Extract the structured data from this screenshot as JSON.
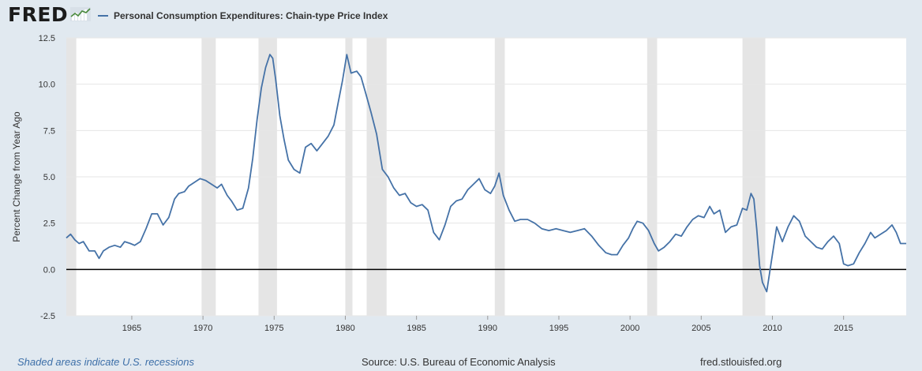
{
  "header": {
    "logo_text": "FRED",
    "legend_label": "Personal Consumption Expenditures: Chain-type Price Index",
    "series_color": "#4572a7"
  },
  "footer": {
    "recession_note": "Shaded areas indicate U.S. recessions",
    "source": "Source: U.S. Bureau of Economic Analysis",
    "site": "fred.stlouisfed.org"
  },
  "chart_data": {
    "type": "line",
    "title": "",
    "xlabel": "",
    "ylabel": "Percent Change from Year Ago",
    "xlim": [
      1960.4,
      2019.4
    ],
    "ylim": [
      -2.5,
      12.5
    ],
    "yticks": [
      "12.5",
      "10.0",
      "7.5",
      "5.0",
      "2.5",
      "0.0",
      "-2.5"
    ],
    "xticks": [
      "1965",
      "1970",
      "1975",
      "1980",
      "1985",
      "1990",
      "1995",
      "2000",
      "2005",
      "2010",
      "2015"
    ],
    "grid": true,
    "zero_line": true,
    "recessions": [
      [
        1960.3,
        1961.1
      ],
      [
        1969.9,
        1970.9
      ],
      [
        1973.9,
        1975.2
      ],
      [
        1980.0,
        1980.5
      ],
      [
        1981.5,
        1982.9
      ],
      [
        1990.5,
        1991.2
      ],
      [
        2001.2,
        2001.9
      ],
      [
        2007.9,
        2009.5
      ]
    ],
    "series": [
      {
        "name": "Personal Consumption Expenditures: Chain-type Price Index",
        "color": "#4572a7",
        "x": [
          1960.4,
          1960.7,
          1961.0,
          1961.3,
          1961.6,
          1962.0,
          1962.4,
          1962.7,
          1963.0,
          1963.4,
          1963.8,
          1964.2,
          1964.5,
          1964.9,
          1965.2,
          1965.6,
          1966.0,
          1966.4,
          1966.8,
          1967.2,
          1967.6,
          1968.0,
          1968.3,
          1968.7,
          1969.0,
          1969.4,
          1969.8,
          1970.2,
          1970.6,
          1971.0,
          1971.3,
          1971.7,
          1972.0,
          1972.4,
          1972.8,
          1973.2,
          1973.5,
          1973.8,
          1974.1,
          1974.4,
          1974.7,
          1974.9,
          1975.1,
          1975.4,
          1975.7,
          1976.0,
          1976.4,
          1976.8,
          1977.2,
          1977.6,
          1978.0,
          1978.4,
          1978.8,
          1979.2,
          1979.5,
          1979.8,
          1980.1,
          1980.4,
          1980.8,
          1981.1,
          1981.4,
          1981.8,
          1982.2,
          1982.6,
          1983.0,
          1983.4,
          1983.8,
          1984.2,
          1984.6,
          1985.0,
          1985.4,
          1985.8,
          1986.2,
          1986.6,
          1987.0,
          1987.4,
          1987.8,
          1988.2,
          1988.6,
          1989.0,
          1989.4,
          1989.8,
          1990.2,
          1990.5,
          1990.8,
          1991.1,
          1991.5,
          1991.9,
          1992.3,
          1992.8,
          1993.3,
          1993.8,
          1994.3,
          1994.8,
          1995.3,
          1995.8,
          1996.3,
          1996.8,
          1997.3,
          1997.8,
          1998.3,
          1998.7,
          1999.1,
          1999.5,
          1999.9,
          2000.2,
          2000.5,
          2000.9,
          2001.3,
          2001.7,
          2002.0,
          2002.4,
          2002.8,
          2003.2,
          2003.6,
          2004.0,
          2004.4,
          2004.8,
          2005.2,
          2005.6,
          2005.9,
          2006.3,
          2006.7,
          2007.1,
          2007.5,
          2007.9,
          2008.2,
          2008.5,
          2008.7,
          2008.9,
          2009.1,
          2009.3,
          2009.6,
          2009.9,
          2010.3,
          2010.7,
          2011.1,
          2011.5,
          2011.9,
          2012.3,
          2012.7,
          2013.1,
          2013.5,
          2013.9,
          2014.3,
          2014.7,
          2015.0,
          2015.3,
          2015.7,
          2016.1,
          2016.5,
          2016.9,
          2017.2,
          2017.6,
          2018.0,
          2018.4,
          2018.7,
          2019.0,
          2019.4
        ],
        "y": [
          1.7,
          1.9,
          1.6,
          1.4,
          1.5,
          1.0,
          1.0,
          0.6,
          1.0,
          1.2,
          1.3,
          1.2,
          1.5,
          1.4,
          1.3,
          1.5,
          2.2,
          3.0,
          3.0,
          2.4,
          2.8,
          3.8,
          4.1,
          4.2,
          4.5,
          4.7,
          4.9,
          4.8,
          4.6,
          4.4,
          4.6,
          4.0,
          3.7,
          3.2,
          3.3,
          4.4,
          6.0,
          8.1,
          9.8,
          10.9,
          11.6,
          11.4,
          10.3,
          8.3,
          7.0,
          5.9,
          5.4,
          5.2,
          6.6,
          6.8,
          6.4,
          6.8,
          7.2,
          7.8,
          9.0,
          10.2,
          11.6,
          10.6,
          10.7,
          10.4,
          9.6,
          8.5,
          7.3,
          5.4,
          5.0,
          4.4,
          4.0,
          4.1,
          3.6,
          3.4,
          3.5,
          3.2,
          2.0,
          1.6,
          2.4,
          3.4,
          3.7,
          3.8,
          4.3,
          4.6,
          4.9,
          4.3,
          4.1,
          4.5,
          5.2,
          4.0,
          3.2,
          2.6,
          2.7,
          2.7,
          2.5,
          2.2,
          2.1,
          2.2,
          2.1,
          2.0,
          2.1,
          2.2,
          1.8,
          1.3,
          0.9,
          0.8,
          0.8,
          1.3,
          1.7,
          2.2,
          2.6,
          2.5,
          2.1,
          1.4,
          1.0,
          1.2,
          1.5,
          1.9,
          1.8,
          2.3,
          2.7,
          2.9,
          2.8,
          3.4,
          3.0,
          3.2,
          2.0,
          2.3,
          2.4,
          3.3,
          3.2,
          4.1,
          3.8,
          2.2,
          0.2,
          -0.7,
          -1.2,
          0.3,
          2.3,
          1.5,
          2.3,
          2.9,
          2.6,
          1.8,
          1.5,
          1.2,
          1.1,
          1.5,
          1.8,
          1.4,
          0.3,
          0.2,
          0.3,
          0.9,
          1.4,
          2.0,
          1.7,
          1.9,
          2.1,
          2.4,
          2.0,
          1.4,
          1.4
        ]
      }
    ]
  }
}
